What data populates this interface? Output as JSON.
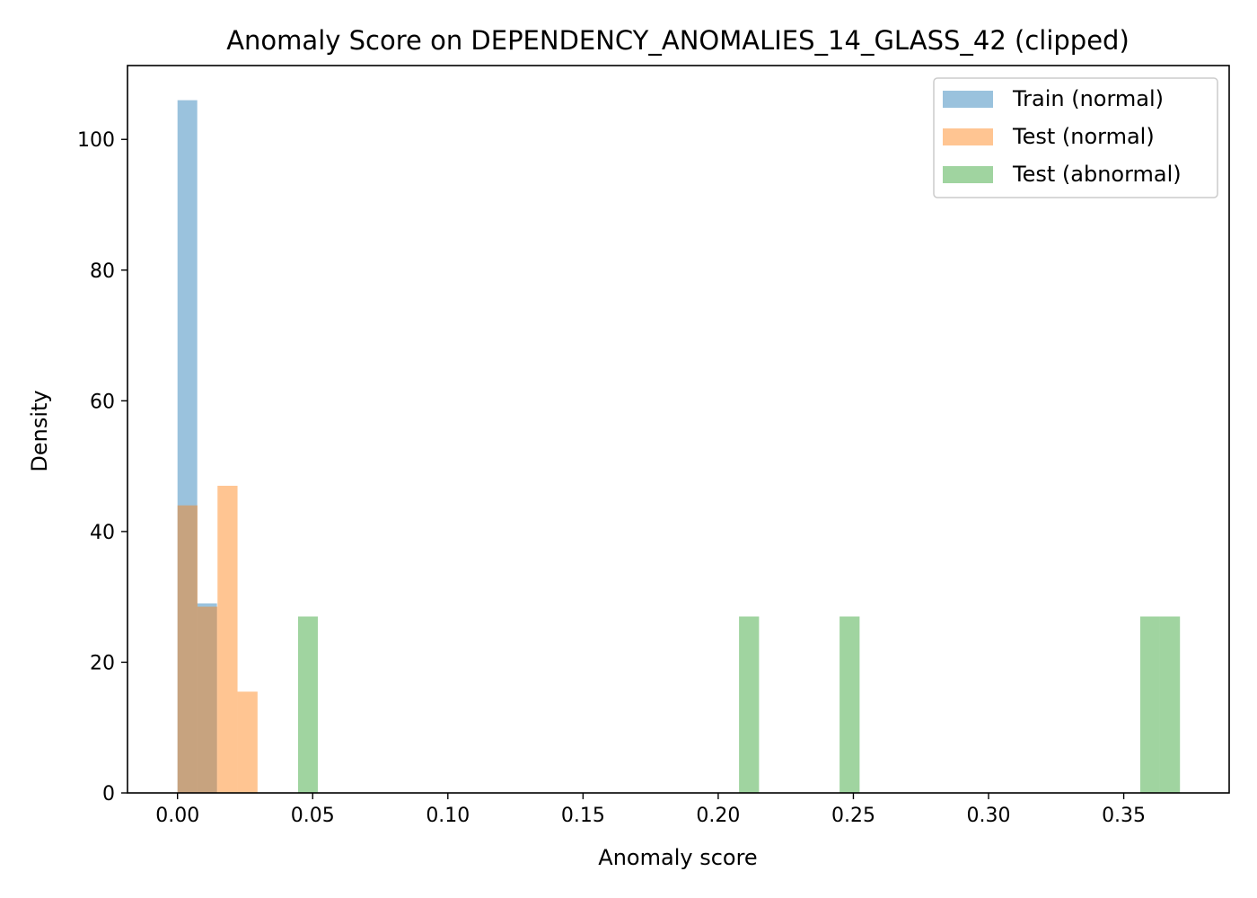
{
  "chart_data": {
    "type": "bar",
    "title": "Anomaly Score on DEPENDENCY_ANOMALIES_14_GLASS_42 (clipped)",
    "xlabel": "Anomaly score",
    "ylabel": "Density",
    "xlim": [
      -0.0185,
      0.389
    ],
    "ylim": [
      0,
      111.3
    ],
    "x_ticks": [
      0.0,
      0.05,
      0.1,
      0.15,
      0.2,
      0.25,
      0.3,
      0.35
    ],
    "x_tick_labels": [
      "0.00",
      "0.05",
      "0.10",
      "0.15",
      "0.20",
      "0.25",
      "0.30",
      "0.35"
    ],
    "y_ticks": [
      0,
      20,
      40,
      60,
      80,
      100
    ],
    "y_tick_labels": [
      "0",
      "20",
      "40",
      "60",
      "80",
      "100"
    ],
    "grid": false,
    "legend_position": "top-right",
    "bar_alpha": 0.45,
    "series": [
      {
        "name": "Train (normal)",
        "color": "#1f77b4",
        "bins": [
          {
            "x0": 0.0,
            "x1": 0.0073,
            "y": 106
          },
          {
            "x0": 0.0073,
            "x1": 0.0146,
            "y": 29
          }
        ]
      },
      {
        "name": "Test (normal)",
        "color": "#ff7f0e",
        "bins": [
          {
            "x0": 0.0,
            "x1": 0.0074,
            "y": 44
          },
          {
            "x0": 0.0074,
            "x1": 0.0148,
            "y": 28.5
          },
          {
            "x0": 0.0148,
            "x1": 0.0222,
            "y": 47
          },
          {
            "x0": 0.0222,
            "x1": 0.0296,
            "y": 15.5
          }
        ]
      },
      {
        "name": "Test (abnormal)",
        "color": "#2ca02c",
        "bins": [
          {
            "x0": 0.0446,
            "x1": 0.0519,
            "y": 27
          },
          {
            "x0": 0.2077,
            "x1": 0.2151,
            "y": 27
          },
          {
            "x0": 0.2449,
            "x1": 0.2523,
            "y": 27
          },
          {
            "x0": 0.3561,
            "x1": 0.3634,
            "y": 27
          },
          {
            "x0": 0.3634,
            "x1": 0.3708,
            "y": 27
          }
        ]
      }
    ]
  }
}
